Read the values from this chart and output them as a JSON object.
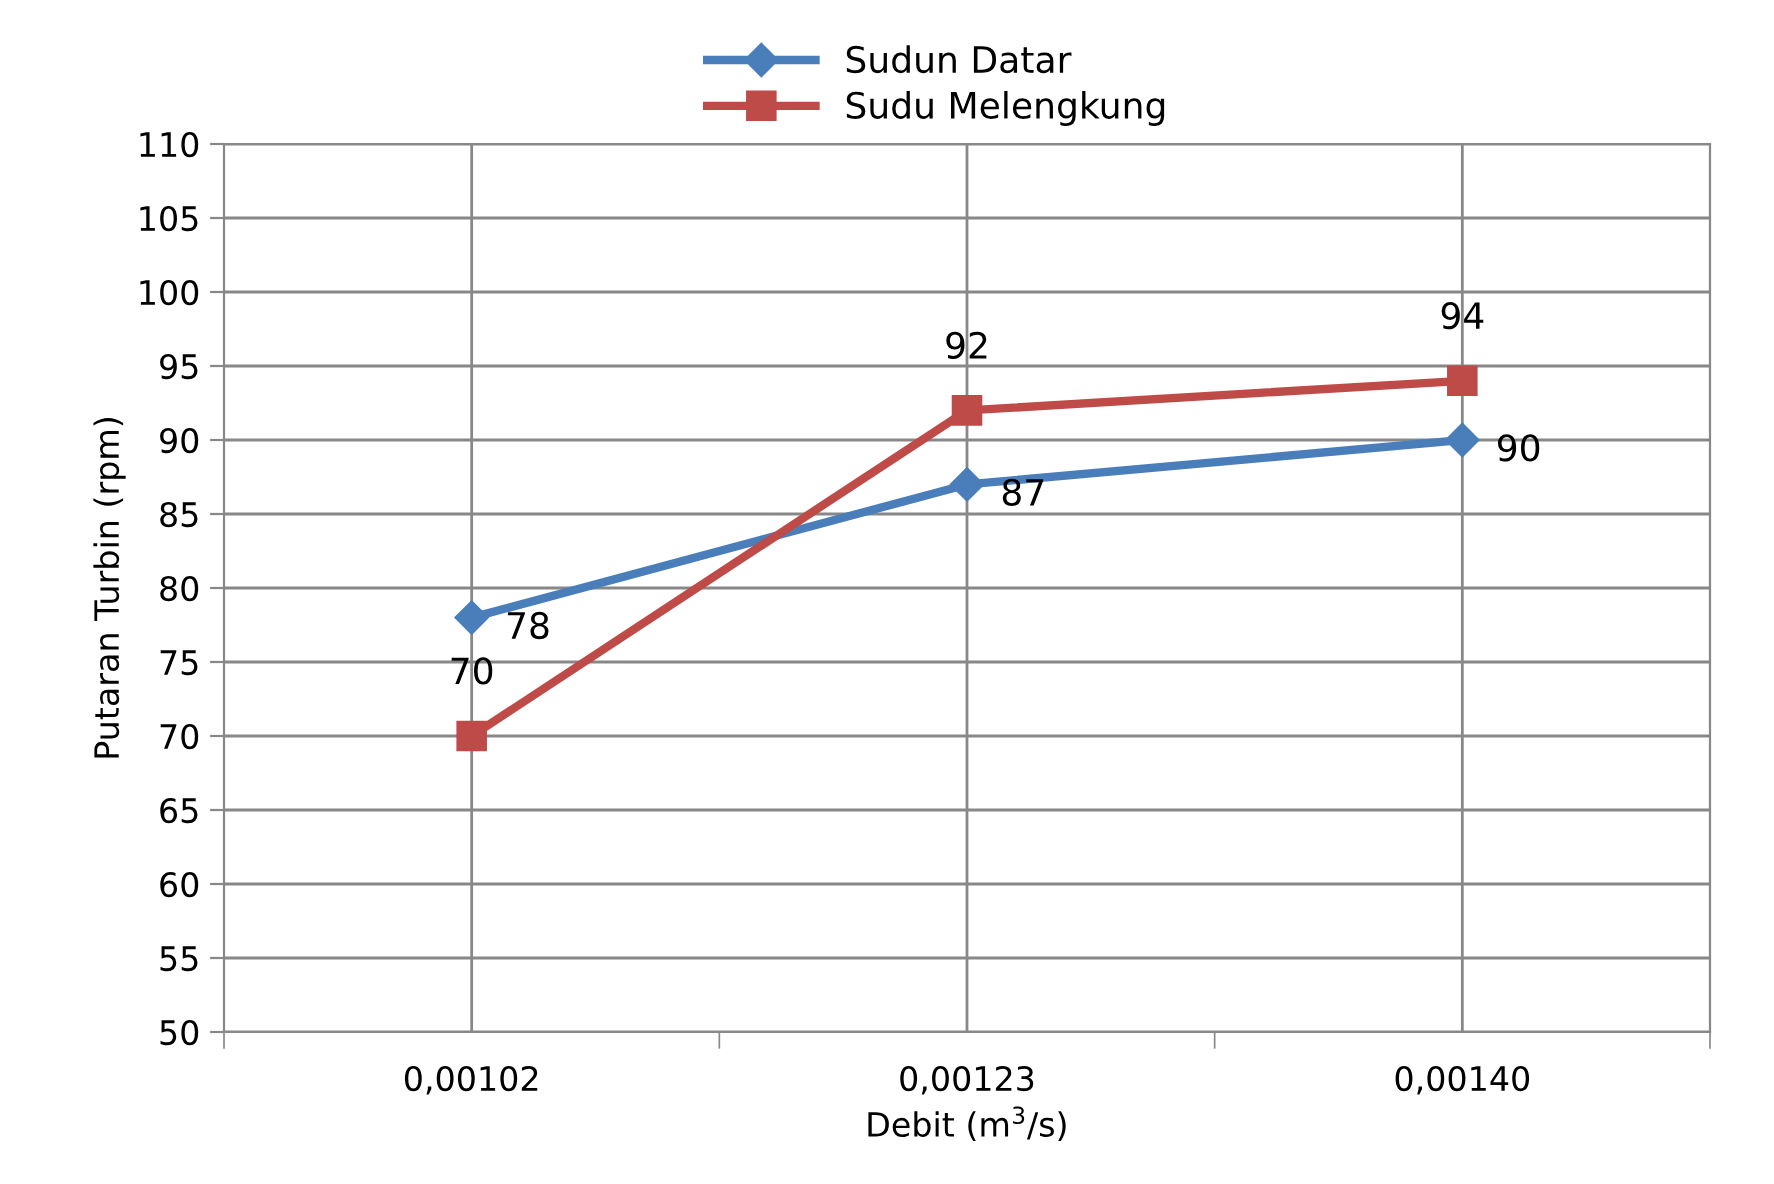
{
  "chart_data": {
    "type": "line",
    "xlabel": "Debit (m$^{3}$/s)",
    "ylabel": "Putaran Turbin (rpm)",
    "categories": [
      "0,00102",
      "0,00123",
      "0,00140"
    ],
    "series": [
      {
        "name": "Sudun Datar",
        "color": "#4a7ebb",
        "marker": "diamond",
        "values": [
          78,
          87,
          90
        ]
      },
      {
        "name": "Sudu Melengkung",
        "color": "#be4b48",
        "marker": "square",
        "values": [
          70,
          92,
          94
        ]
      }
    ],
    "ylim": [
      50,
      110
    ],
    "yticks": [
      50,
      55,
      60,
      65,
      70,
      75,
      80,
      85,
      90,
      95,
      100,
      105,
      110
    ],
    "grid": true,
    "legend": "top",
    "data_labels": true,
    "line_style": "solid"
  }
}
